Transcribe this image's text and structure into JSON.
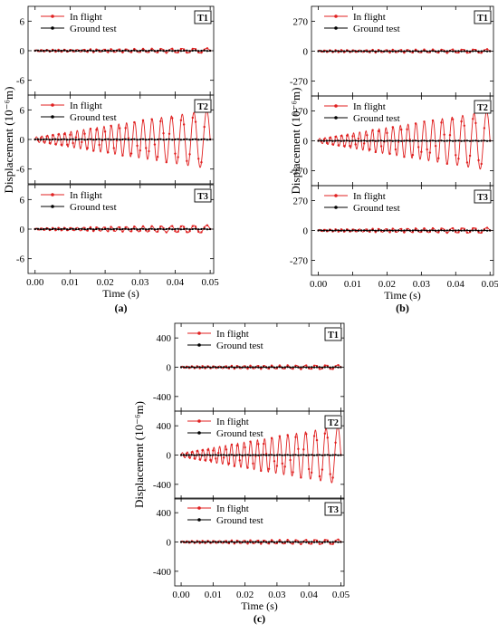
{
  "chart_data": [
    {
      "type": "line",
      "panel_label": "(a)",
      "xlabel": "Time (s)",
      "ylabel": "Displacement (10⁻⁶m)",
      "xlim": [
        -0.002,
        0.051
      ],
      "x_ticks": [
        0.0,
        0.01,
        0.02,
        0.03,
        0.04,
        0.05
      ],
      "x_tick_labels": [
        "0.00",
        "0.01",
        "0.02",
        "0.03",
        "0.04",
        "0.05"
      ],
      "ylim": [
        -9,
        9
      ],
      "y_ticks": [
        -6,
        0,
        6
      ],
      "y_tick_labels": [
        "-6",
        "0",
        "6"
      ],
      "series_names": [
        "In flight",
        "Ground test"
      ],
      "colors": {
        "in_flight": "#e02020",
        "ground": "#000000"
      },
      "panels": [
        {
          "tag": "T1",
          "in_flight_amplitude_start": 0.2,
          "in_flight_amplitude_end": 0.5,
          "ground_amplitude": 0.05
        },
        {
          "tag": "T2",
          "in_flight_amplitude_start": 0.5,
          "in_flight_amplitude_end": 6.0,
          "ground_amplitude": 0.05
        },
        {
          "tag": "T3",
          "in_flight_amplitude_start": 0.2,
          "in_flight_amplitude_end": 0.8,
          "ground_amplitude": 0.05
        }
      ],
      "in_flight_frequency_start_hz": 650,
      "in_flight_frequency_end_hz": 250
    },
    {
      "type": "line",
      "panel_label": "(b)",
      "xlabel": "Time (s)",
      "ylabel": "Displacement (10⁻⁶m)",
      "xlim": [
        -0.002,
        0.051
      ],
      "x_ticks": [
        0.0,
        0.01,
        0.02,
        0.03,
        0.04,
        0.05
      ],
      "x_tick_labels": [
        "0.00",
        "0.01",
        "0.02",
        "0.03",
        "0.04",
        "0.05"
      ],
      "ylim": [
        -405,
        405
      ],
      "y_ticks": [
        -270,
        0,
        270
      ],
      "y_tick_labels": [
        "-270",
        "0",
        "270"
      ],
      "series_names": [
        "In flight",
        "Ground test"
      ],
      "colors": {
        "in_flight": "#e02020",
        "ground": "#000000"
      },
      "panels": [
        {
          "tag": "T1",
          "in_flight_amplitude_start": 10,
          "in_flight_amplitude_end": 18,
          "ground_amplitude": 2
        },
        {
          "tag": "T2",
          "in_flight_amplitude_start": 20,
          "in_flight_amplitude_end": 270,
          "ground_amplitude": 2
        },
        {
          "tag": "T3",
          "in_flight_amplitude_start": 10,
          "in_flight_amplitude_end": 25,
          "ground_amplitude": 2
        }
      ],
      "in_flight_frequency_start_hz": 650,
      "in_flight_frequency_end_hz": 250
    },
    {
      "type": "line",
      "panel_label": "(c)",
      "xlabel": "Time (s)",
      "ylabel": "Displacement (10⁻⁶m)",
      "xlim": [
        -0.002,
        0.051
      ],
      "x_ticks": [
        0.0,
        0.01,
        0.02,
        0.03,
        0.04,
        0.05
      ],
      "x_tick_labels": [
        "0.00",
        "0.01",
        "0.02",
        "0.03",
        "0.04",
        "0.05"
      ],
      "ylim": [
        -600,
        600
      ],
      "y_ticks": [
        -400,
        0,
        400
      ],
      "y_tick_labels": [
        "-400",
        "0",
        "400"
      ],
      "series_names": [
        "In flight",
        "Ground test"
      ],
      "colors": {
        "in_flight": "#e02020",
        "ground": "#000000"
      },
      "panels": [
        {
          "tag": "T1",
          "in_flight_amplitude_start": 15,
          "in_flight_amplitude_end": 30,
          "ground_amplitude": 3
        },
        {
          "tag": "T2",
          "in_flight_amplitude_start": 30,
          "in_flight_amplitude_end": 400,
          "ground_amplitude": 3
        },
        {
          "tag": "T3",
          "in_flight_amplitude_start": 15,
          "in_flight_amplitude_end": 35,
          "ground_amplitude": 3
        }
      ],
      "in_flight_frequency_start_hz": 650,
      "in_flight_frequency_end_hz": 250
    }
  ]
}
